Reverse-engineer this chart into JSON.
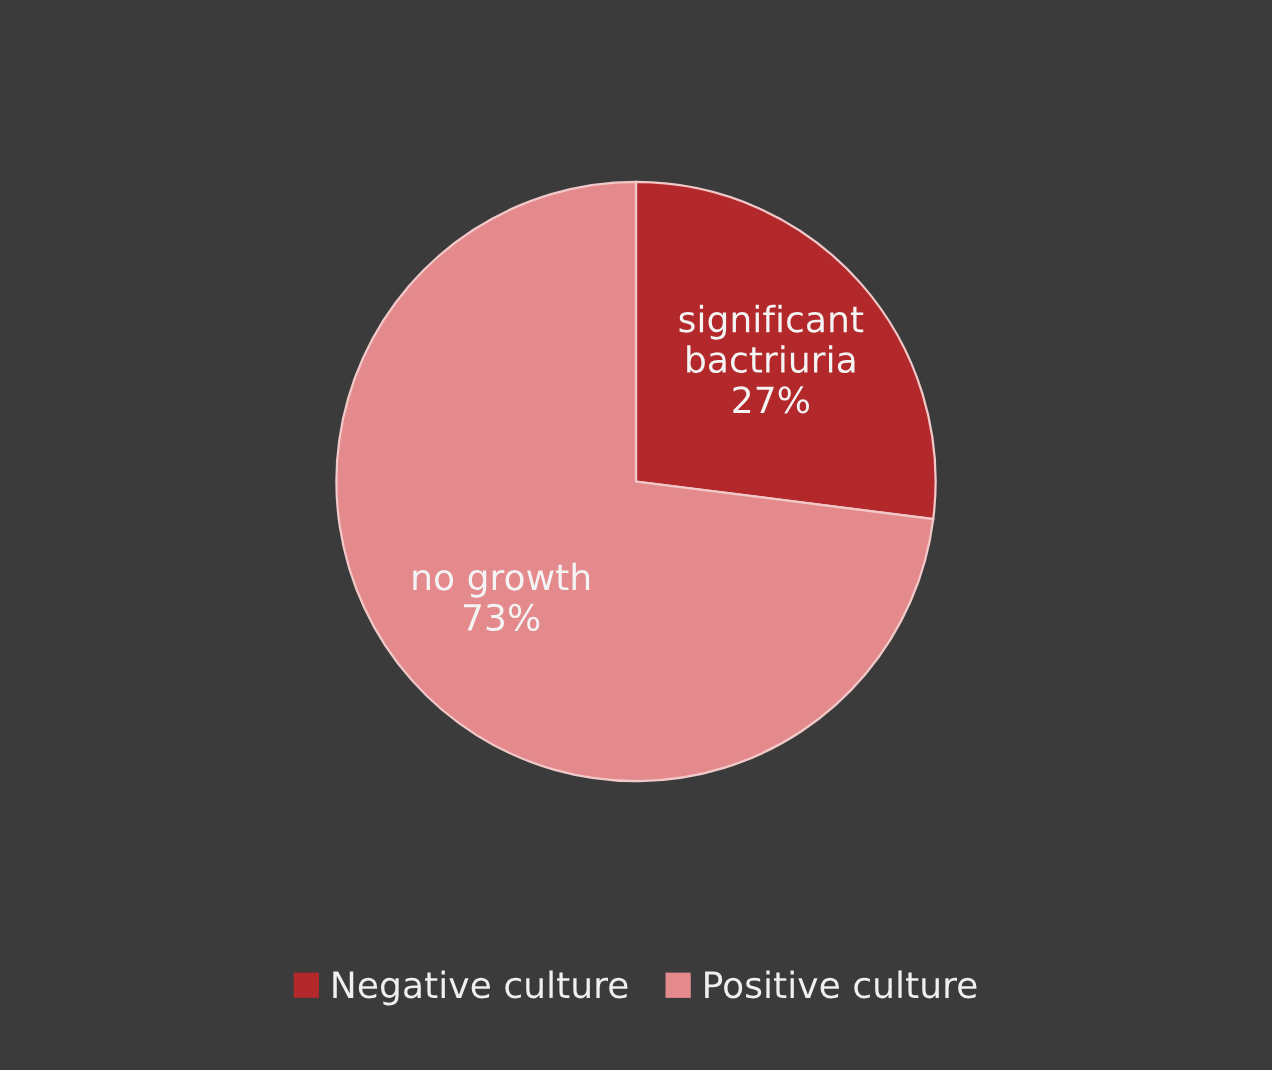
{
  "chart_data": {
    "type": "pie",
    "categories": [
      "Negative culture",
      "Positive culture"
    ],
    "values": [
      27,
      73
    ],
    "colors": [
      "#b3292b",
      "#e48a8c"
    ],
    "value_labels": [
      "significant\nbactriuria\n27%",
      "no growth\n73%"
    ],
    "legend": "bottom"
  }
}
